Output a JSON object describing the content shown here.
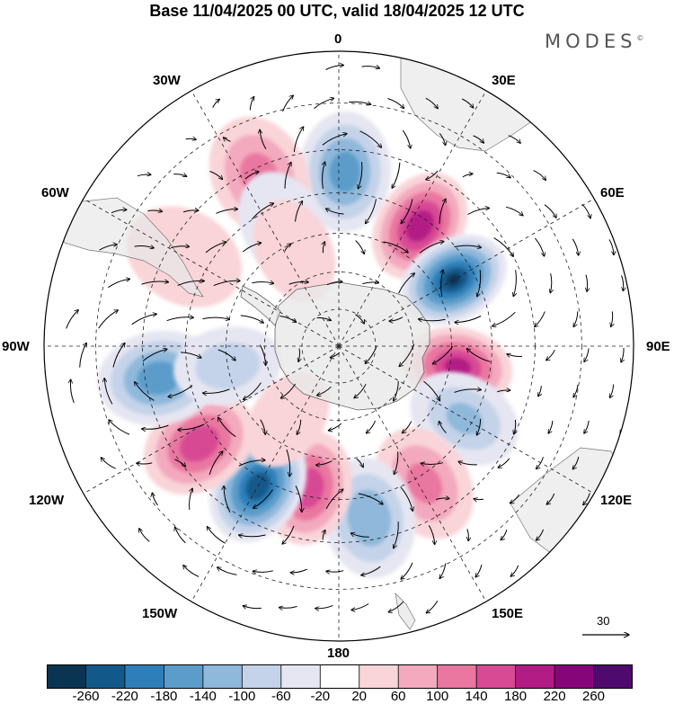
{
  "header": {
    "title": "Base 11/04/2025 00 UTC, valid 18/04/2025 12 UTC",
    "brand": "MODES",
    "brand_mark": "©"
  },
  "map": {
    "projection": "south-polar-stereographic",
    "hemisphere": "southern",
    "longitude_labels": {
      "lon_0": "0",
      "lon_30e": "30E",
      "lon_60e": "60E",
      "lon_90e": "90E",
      "lon_120e": "120E",
      "lon_150e": "150E",
      "lon_180": "180",
      "lon_150w": "150W",
      "lon_120w": "120W",
      "lon_90w": "90W",
      "lon_60w": "60W",
      "lon_30w": "30W"
    },
    "graticule": "dashed",
    "field_anomalies": [
      {
        "sign": "negative",
        "lon": 2,
        "lat": -45,
        "value": -170
      },
      {
        "sign": "positive",
        "lon": 34,
        "lat": -52,
        "value": 215
      },
      {
        "sign": "negative",
        "lon": 60,
        "lat": -55,
        "value": -265
      },
      {
        "sign": "positive",
        "lon": 100,
        "lat": -58,
        "value": 200
      },
      {
        "sign": "negative",
        "lon": 120,
        "lat": -52,
        "value": -110
      },
      {
        "sign": "positive",
        "lon": 148,
        "lat": -48,
        "value": 115
      },
      {
        "sign": "negative",
        "lon": 170,
        "lat": -45,
        "value": -140
      },
      {
        "sign": "positive",
        "lon": -168,
        "lat": -52,
        "value": 175
      },
      {
        "sign": "negative",
        "lon": -150,
        "lat": -48,
        "value": -255
      },
      {
        "sign": "positive",
        "lon": -125,
        "lat": -46,
        "value": 175
      },
      {
        "sign": "negative",
        "lon": -100,
        "lat": -43,
        "value": -175
      },
      {
        "sign": "negative",
        "lon": -100,
        "lat": -60,
        "value": -90
      },
      {
        "sign": "positive",
        "lon": -60,
        "lat": -44,
        "value": 50
      },
      {
        "sign": "positive",
        "lon": -25,
        "lat": -42,
        "value": 120
      },
      {
        "sign": "negative",
        "lon": -25,
        "lat": -55,
        "value": -60
      },
      {
        "sign": "positive",
        "lon": -25,
        "lat": -62,
        "value": 60
      },
      {
        "sign": "positive",
        "lon": -145,
        "lat": -66,
        "value": 45
      }
    ],
    "vector_field": "wind-arrows",
    "reference_vector": {
      "value": "30"
    }
  },
  "colorbar": {
    "ticks": [
      "-260",
      "-220",
      "-180",
      "-140",
      "-100",
      "-60",
      "-20",
      "20",
      "60",
      "100",
      "140",
      "180",
      "220",
      "260"
    ],
    "colors": [
      "#0b3352",
      "#12598a",
      "#2e7fb9",
      "#5b9cca",
      "#8fb8db",
      "#c4d3e9",
      "#e6e6f2",
      "#ffffff",
      "#f9d4d8",
      "#f3a9be",
      "#e9779f",
      "#d84a94",
      "#b31b85",
      "#86067a",
      "#4f0a6e"
    ]
  }
}
